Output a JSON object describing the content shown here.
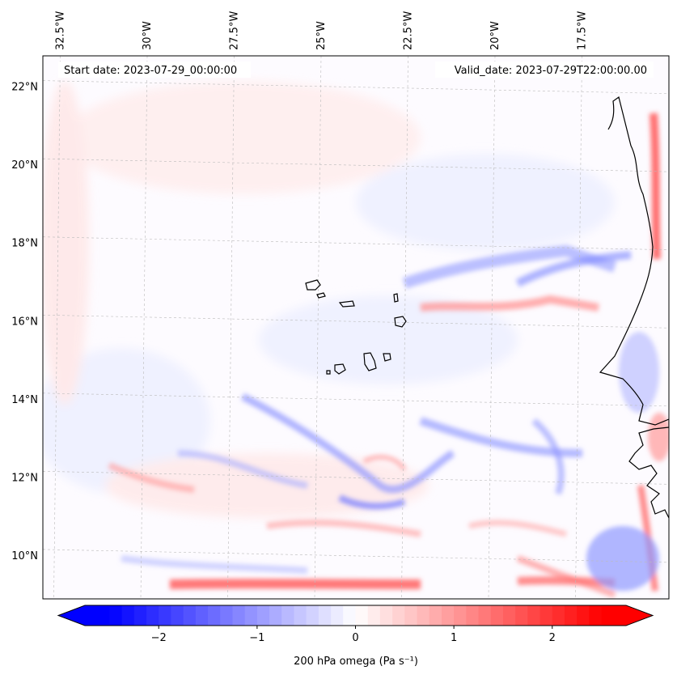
{
  "map": {
    "start_date_text": "Start date: 2023-07-29_00:00:00",
    "valid_date_text": "Valid_date: 2023-07-29T22:00:00.00",
    "extent": {
      "lon_min": -33.0,
      "lon_max": -15.0,
      "lat_min": 8.9,
      "lat_max": 22.8
    },
    "lon_ticks": [
      {
        "value": -32.5,
        "label": "32.5°W"
      },
      {
        "value": -30.0,
        "label": "30°W"
      },
      {
        "value": -27.5,
        "label": "27.5°W"
      },
      {
        "value": -25.0,
        "label": "25°W"
      },
      {
        "value": -22.5,
        "label": "22.5°W"
      },
      {
        "value": -20.0,
        "label": "20°W"
      },
      {
        "value": -17.5,
        "label": "17.5°W"
      }
    ],
    "lat_ticks": [
      {
        "value": 22,
        "label": "22°N"
      },
      {
        "value": 20,
        "label": "20°N"
      },
      {
        "value": 18,
        "label": "18°N"
      },
      {
        "value": 16,
        "label": "16°N"
      },
      {
        "value": 14,
        "label": "14°N"
      },
      {
        "value": 12,
        "label": "12°N"
      },
      {
        "value": 10,
        "label": "10°N"
      }
    ],
    "colors": {
      "negative": "#0000ff",
      "zero": "#ffffff",
      "positive": "#ff0000",
      "gridline": "#bbbbbb",
      "coastline": "#000000"
    }
  },
  "colorbar": {
    "label": "200 hPa omega (Pa s⁻¹)",
    "vmin": -2.75,
    "vmax": 2.75,
    "ticks": [
      {
        "value": -2,
        "label": "−2"
      },
      {
        "value": -1,
        "label": "−1"
      },
      {
        "value": 0,
        "label": "0"
      },
      {
        "value": 1,
        "label": "1"
      },
      {
        "value": 2,
        "label": "2"
      }
    ]
  }
}
